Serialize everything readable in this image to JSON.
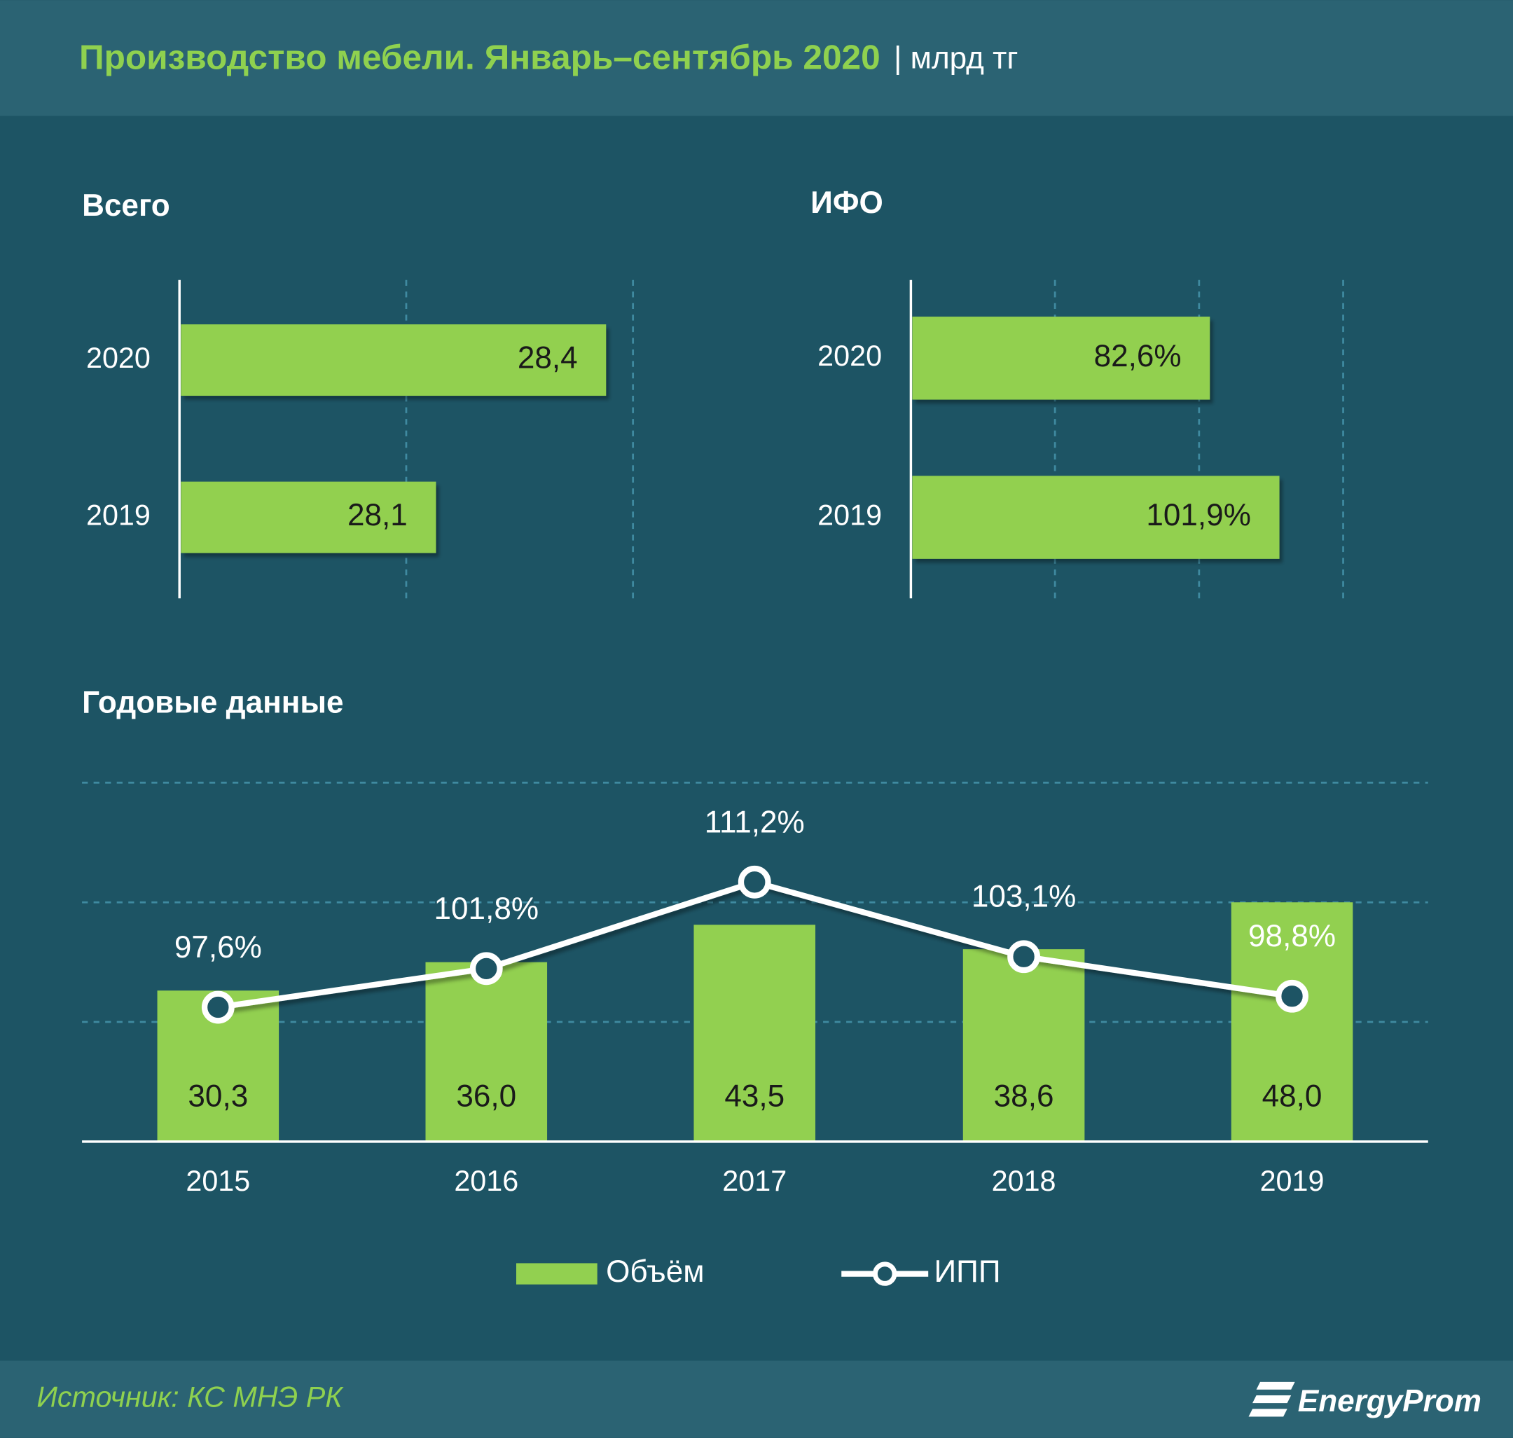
{
  "title": "Производство мебели. Январь–сентябрь 2020",
  "unit": "| млрд тг",
  "source": "Источник: КС МНЭ РК",
  "brand": "EnergyProm",
  "chart_data": [
    {
      "type": "barh",
      "title": "Всего",
      "categories": [
        "2020",
        "2019"
      ],
      "values": [
        28.4,
        28.1
      ],
      "value_labels": [
        "28,4",
        "28,1"
      ],
      "color": "#92d050",
      "xlim": [
        27.65,
        28.45
      ],
      "xticks": [
        27.65,
        28.05,
        28.45
      ],
      "grid": true
    },
    {
      "type": "barh",
      "title": "ИФО",
      "categories": [
        "2020",
        "2019"
      ],
      "values": [
        82.6,
        101.9
      ],
      "value_labels": [
        "82,6%",
        "101,9%"
      ],
      "color": "#92d050",
      "xlim": [
        0,
        120
      ],
      "xticks": [
        0,
        40,
        80,
        120
      ],
      "grid": true
    },
    {
      "type": "combo",
      "title": "Годовые данные",
      "categories": [
        "2015",
        "2016",
        "2017",
        "2018",
        "2019"
      ],
      "series": [
        {
          "name": "Объём",
          "type": "bar",
          "color": "#92d050",
          "values": [
            30.3,
            36.0,
            43.5,
            38.6,
            48.0
          ],
          "value_labels": [
            "30,3",
            "36,0",
            "43,5",
            "38,6",
            "48,0"
          ]
        },
        {
          "name": "ИПП",
          "type": "line",
          "axis": "y2",
          "color": "#ffffff",
          "values": [
            97.6,
            101.8,
            111.2,
            103.1,
            98.8
          ],
          "value_labels": [
            "97,6%",
            "101,8%",
            "111,2%",
            "103,1%",
            "98,8%"
          ]
        }
      ],
      "ylim": [
        0,
        72
      ],
      "yticks": [
        0,
        24,
        48,
        72
      ],
      "y2lim": [
        83,
        122
      ],
      "grid": true,
      "legend": "bottom"
    }
  ]
}
